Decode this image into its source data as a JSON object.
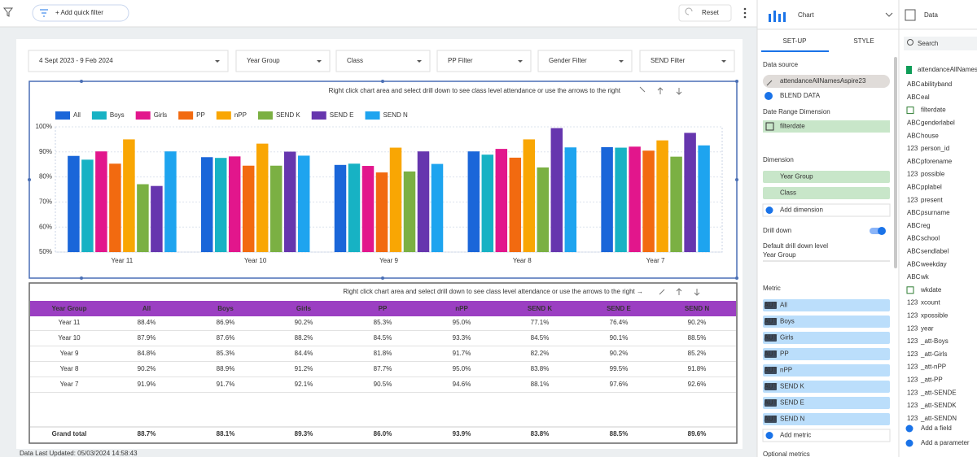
{
  "toolbar": {
    "add_filter": "+ Add quick filter",
    "reset": "Reset"
  },
  "filters": [
    "4 Sept 2023 - 9 Feb 2024",
    "Year Group",
    "Class",
    "PP Filter",
    "Gender Filter",
    "SEND Filter"
  ],
  "chart_data": {
    "type": "bar",
    "annotation": "Right click chart area and select drill down to see class level attendance or use the arrows to the right",
    "categories": [
      "Year 11",
      "Year 10",
      "Year 9",
      "Year 8",
      "Year 7"
    ],
    "series": [
      {
        "name": "All",
        "color": "#1a66d9",
        "values": [
          88.4,
          87.9,
          84.8,
          90.2,
          91.9
        ]
      },
      {
        "name": "Boys",
        "color": "#17b2c4",
        "values": [
          86.9,
          87.6,
          85.3,
          88.9,
          91.7
        ]
      },
      {
        "name": "Girls",
        "color": "#e2168c",
        "values": [
          90.2,
          88.2,
          84.4,
          91.2,
          92.1
        ]
      },
      {
        "name": "PP",
        "color": "#f26a10",
        "values": [
          85.3,
          84.5,
          81.8,
          87.7,
          90.5
        ]
      },
      {
        "name": "nPP",
        "color": "#f9a603",
        "values": [
          95.0,
          93.3,
          91.7,
          95.0,
          94.6
        ]
      },
      {
        "name": "SEND K",
        "color": "#7bb043",
        "values": [
          77.1,
          84.5,
          82.2,
          83.8,
          88.1
        ]
      },
      {
        "name": "SEND E",
        "color": "#6636ae",
        "values": [
          76.4,
          90.1,
          90.2,
          99.5,
          97.6
        ]
      },
      {
        "name": "SEND N",
        "color": "#1ea4ef",
        "values": [
          90.2,
          88.5,
          85.2,
          91.8,
          92.6
        ]
      }
    ],
    "ylim": [
      50,
      100
    ],
    "yticks": [
      {
        "value": 50,
        "label": "50%"
      },
      {
        "value": 60,
        "label": "60%"
      },
      {
        "value": 70,
        "label": "70%"
      },
      {
        "value": 80,
        "label": "80%"
      },
      {
        "value": 90,
        "label": "90%"
      },
      {
        "value": 100,
        "label": "100%"
      }
    ],
    "grid": true,
    "legend": "top"
  },
  "table": {
    "annotation": "Right click chart area and select drill down to see class level attendance or use the arrows to the right →",
    "columns": [
      "Year Group",
      "All",
      "Boys",
      "Girls",
      "PP",
      "nPP",
      "SEND K",
      "SEND E",
      "SEND N"
    ],
    "rows": [
      [
        "Year 11",
        "88.4%",
        "86.9%",
        "90.2%",
        "85.3%",
        "95.0%",
        "77.1%",
        "76.4%",
        "90.2%"
      ],
      [
        "Year 10",
        "87.9%",
        "87.6%",
        "88.2%",
        "84.5%",
        "93.3%",
        "84.5%",
        "90.1%",
        "88.5%"
      ],
      [
        "Year 9",
        "84.8%",
        "85.3%",
        "84.4%",
        "81.8%",
        "91.7%",
        "82.2%",
        "90.2%",
        "85.2%"
      ],
      [
        "Year 8",
        "90.2%",
        "88.9%",
        "91.2%",
        "87.7%",
        "95.0%",
        "83.8%",
        "99.5%",
        "91.8%"
      ],
      [
        "Year 7",
        "91.9%",
        "91.7%",
        "92.1%",
        "90.5%",
        "94.6%",
        "88.1%",
        "97.6%",
        "92.6%"
      ]
    ],
    "total": [
      "Grand total",
      "88.7%",
      "88.1%",
      "89.3%",
      "86.0%",
      "93.9%",
      "83.8%",
      "88.5%",
      "89.6%"
    ]
  },
  "footer": "Data Last Updated: 05/03/2024 14:58:43",
  "setup_panel": {
    "title": "Chart",
    "tabs": [
      "SET-UP",
      "STYLE"
    ],
    "data_source_label": "Data source",
    "data_source": "attendanceAllNamesAspire23",
    "blend": "BLEND DATA",
    "date_label": "Date Range Dimension",
    "date_field": "filterdate",
    "dimension_label": "Dimension",
    "dimensions": [
      "Year Group",
      "Class"
    ],
    "add_dimension": "Add dimension",
    "drill_label": "Drill down",
    "drill_level_label": "Default drill down level",
    "drill_level": "Year Group",
    "metric_label": "Metric",
    "metric_tag": "AUT",
    "metrics": [
      "All",
      "Boys",
      "Girls",
      "PP",
      "nPP",
      "SEND K",
      "SEND E",
      "SEND N"
    ],
    "add_metric": "Add metric",
    "optional_label": "Optional metrics"
  },
  "data_panel": {
    "title": "Data",
    "search": "Search",
    "source": "attendanceAllNames",
    "fields": [
      {
        "type": "ABC",
        "name": "abilityband"
      },
      {
        "type": "ABC",
        "name": "eal"
      },
      {
        "name": "filterdate"
      },
      {
        "type": "ABC",
        "name": "genderlabel"
      },
      {
        "type": "ABC",
        "name": "house"
      },
      {
        "type": "123",
        "name": "person_id"
      },
      {
        "type": "ABC",
        "name": "pforename"
      },
      {
        "type": "123",
        "name": "possible"
      },
      {
        "type": "ABC",
        "name": "pplabel"
      },
      {
        "type": "123",
        "name": "present"
      },
      {
        "type": "ABC",
        "name": "psurname"
      },
      {
        "type": "ABC",
        "name": "reg"
      },
      {
        "type": "ABC",
        "name": "school"
      },
      {
        "type": "ABC",
        "name": "sendlabel"
      },
      {
        "type": "ABC",
        "name": "weekday"
      },
      {
        "type": "ABC",
        "name": "wk"
      },
      {
        "name": "wkdate"
      },
      {
        "type": "123",
        "name": "xcount"
      },
      {
        "type": "123",
        "name": "xpossible"
      },
      {
        "type": "123",
        "name": "year"
      },
      {
        "type": "123",
        "name": "_att-Boys"
      },
      {
        "type": "123",
        "name": "_att-Girls"
      },
      {
        "type": "123",
        "name": "_att-nPP"
      },
      {
        "type": "123",
        "name": "_att-PP"
      },
      {
        "type": "123",
        "name": "_att-SENDE"
      },
      {
        "type": "123",
        "name": "_att-SENDK"
      },
      {
        "type": "123",
        "name": "_att-SENDN"
      }
    ],
    "add_field": "Add a field",
    "add_parameter": "Add a parameter"
  }
}
